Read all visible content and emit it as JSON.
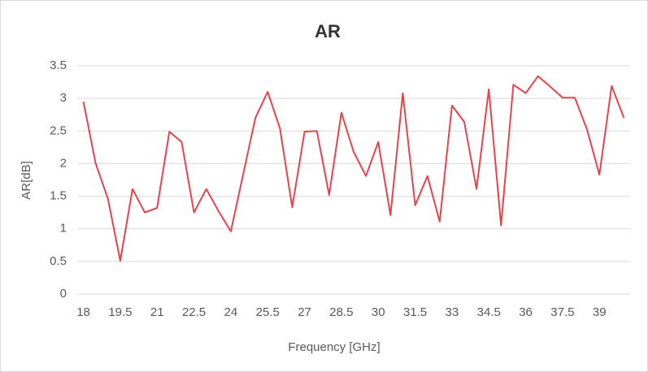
{
  "chart_data": {
    "type": "line",
    "title": "AR",
    "x_label": "Frequency [GHz]",
    "y_label": "AR[dB]",
    "categories": [
      "18",
      null,
      null,
      "19.5",
      null,
      null,
      "21",
      null,
      null,
      "22.5",
      null,
      null,
      "24",
      null,
      null,
      "25.5",
      null,
      null,
      "27",
      null,
      null,
      "28.5",
      null,
      null,
      "30",
      null,
      null,
      "31.5",
      null,
      null,
      "33",
      null,
      null,
      "34.5",
      null,
      null,
      "36",
      null,
      null,
      "37.5",
      null,
      null,
      "39",
      null,
      null
    ],
    "series": [
      {
        "name": "AR",
        "color": "#e8434a",
        "values": [
          2.95,
          2.0,
          1.46,
          0.51,
          1.61,
          1.25,
          1.32,
          2.49,
          2.33,
          1.25,
          1.61,
          1.27,
          0.96,
          1.83,
          2.7,
          3.1,
          2.54,
          1.33,
          2.49,
          2.5,
          1.52,
          2.78,
          2.18,
          1.81,
          2.33,
          1.21,
          3.08,
          1.36,
          1.81,
          1.11,
          2.89,
          2.64,
          1.61,
          3.14,
          1.05,
          3.21,
          3.08,
          3.34,
          3.18,
          3.01,
          3.01,
          2.52,
          1.83,
          3.19,
          2.7
        ]
      }
    ],
    "ylim": [
      0,
      3.5
    ],
    "yticks": [
      0,
      0.5,
      1,
      1.5,
      2,
      2.5,
      3,
      3.5
    ],
    "grid": true
  }
}
